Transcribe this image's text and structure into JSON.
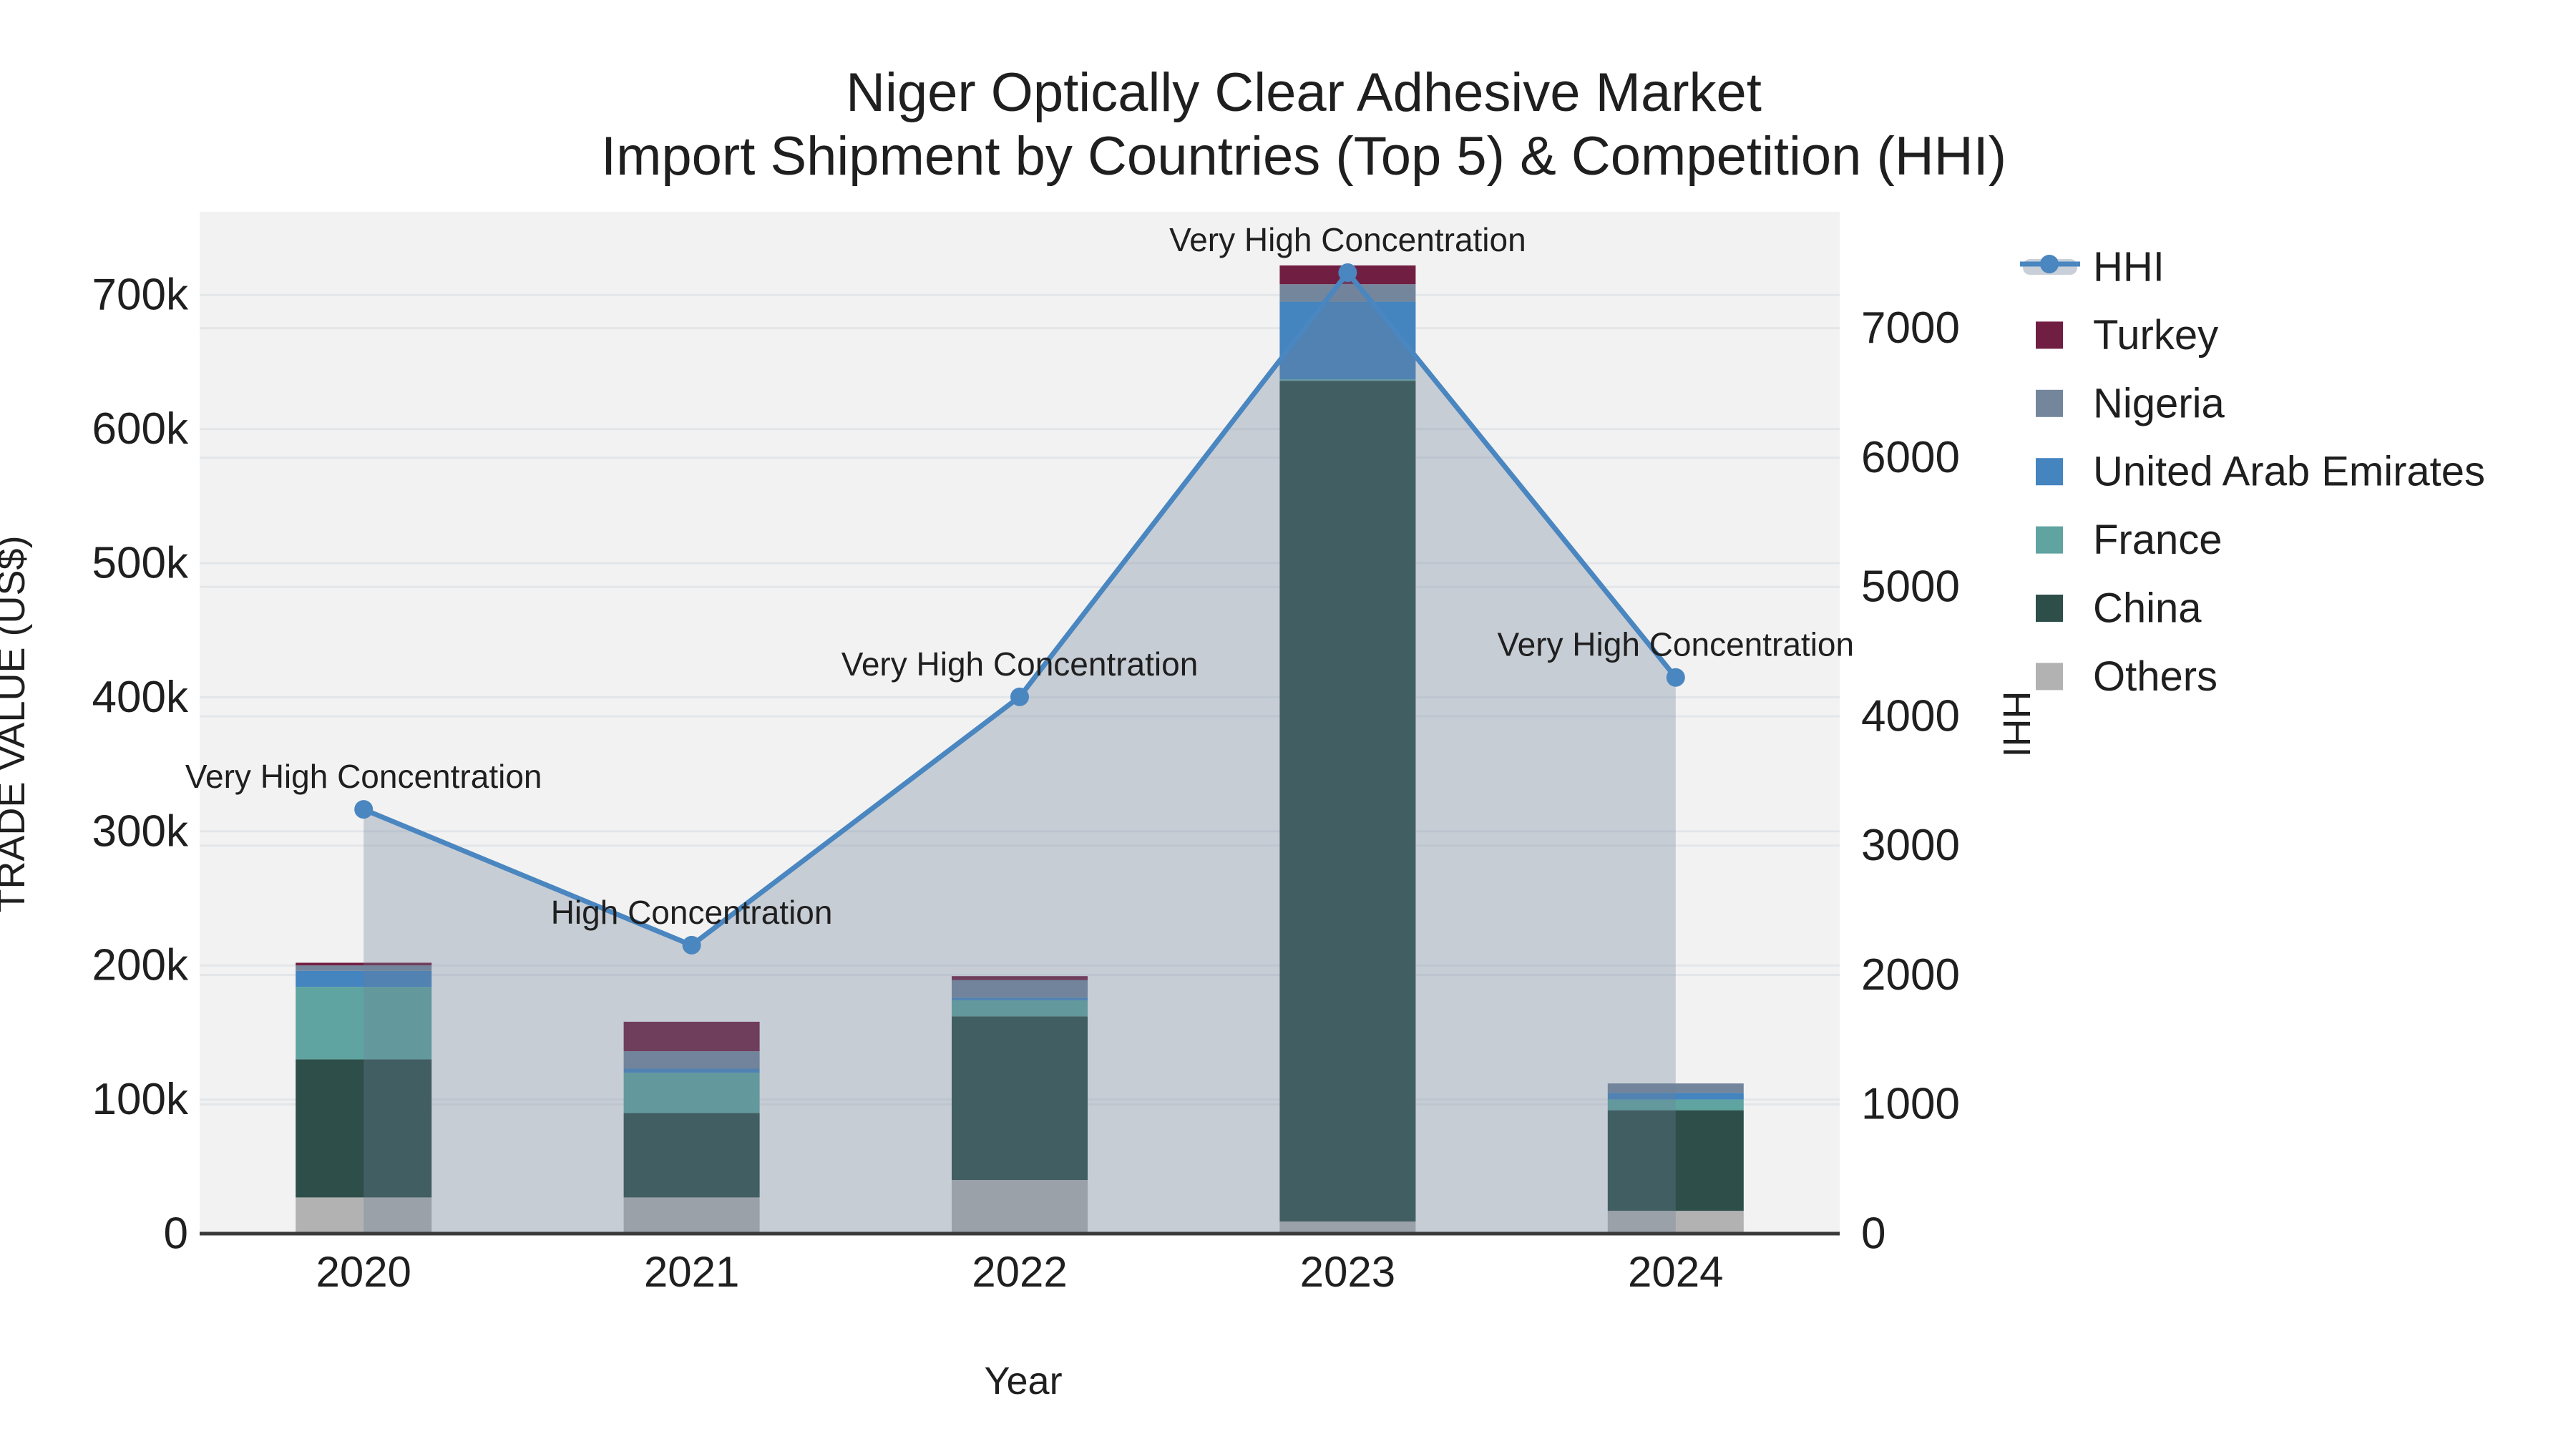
{
  "title": {
    "line1": "Niger Optically Clear Adhesive Market",
    "line2": "Import Shipment by Countries (Top 5) & Competition (HHI)"
  },
  "axes": {
    "x_title": "Year",
    "y_left_title": "TRADE VALUE (US$)",
    "y_right_title": "HHI",
    "y_left_tick_labels": [
      "0",
      "100k",
      "200k",
      "300k",
      "400k",
      "500k",
      "600k",
      "700k"
    ],
    "y_left_tick_values": [
      0,
      100,
      200,
      300,
      400,
      500,
      600,
      700
    ],
    "y_right_tick_labels": [
      "0",
      "1000",
      "2000",
      "3000",
      "4000",
      "5000",
      "6000",
      "7000"
    ],
    "y_right_tick_values": [
      0,
      1000,
      2000,
      3000,
      4000,
      5000,
      6000,
      7000
    ]
  },
  "legend": {
    "items": [
      {
        "label": "HHI",
        "type": "line",
        "color": "#4a86c0"
      },
      {
        "label": "Turkey",
        "type": "swatch",
        "color": "#701f42"
      },
      {
        "label": "Nigeria",
        "type": "swatch",
        "color": "#74869c"
      },
      {
        "label": "United Arab Emirates",
        "type": "swatch",
        "color": "#4484bf"
      },
      {
        "label": "France",
        "type": "swatch",
        "color": "#5fa4a0"
      },
      {
        "label": "China",
        "type": "swatch",
        "color": "#2d4e49"
      },
      {
        "label": "Others",
        "type": "swatch",
        "color": "#b2b2b2"
      }
    ]
  },
  "colors": {
    "plot_bg": "#f2f2f2",
    "gridline": "#e3e6e9",
    "axis_line": "#3a3a3a",
    "hhi_line": "#4a86c0",
    "hhi_area": "#6c8098",
    "hhi_area_opacity": "0.32",
    "text": "#1f1f1f"
  },
  "chart_data": {
    "type": "bar+line",
    "title": "Niger Optically Clear Adhesive Market — Import Shipment by Countries (Top 5) & Competition (HHI)",
    "unit": "US$ thousands",
    "categories": [
      "2020",
      "2021",
      "2022",
      "2023",
      "2024"
    ],
    "series": [
      {
        "name": "Turkey",
        "color": "#701f42",
        "values": [
          2,
          22,
          3,
          14,
          0
        ]
      },
      {
        "name": "Nigeria",
        "color": "#74869c",
        "values": [
          4,
          13,
          13,
          13,
          7
        ]
      },
      {
        "name": "United Arab Emirates",
        "color": "#4484bf",
        "values": [
          12,
          3,
          2,
          58,
          5
        ]
      },
      {
        "name": "France",
        "color": "#5fa4a0",
        "values": [
          54,
          30,
          12,
          1,
          8
        ]
      },
      {
        "name": "China",
        "color": "#2d4e49",
        "values": [
          103,
          63,
          122,
          627,
          75
        ]
      },
      {
        "name": "Others",
        "color": "#b2b2b2",
        "values": [
          27,
          27,
          40,
          9,
          17
        ]
      }
    ],
    "stack_order_bottom_to_top": [
      "Others",
      "China",
      "France",
      "United Arab Emirates",
      "Nigeria",
      "Turkey"
    ],
    "stacked_totals": [
      202,
      158,
      192,
      722,
      112
    ],
    "line_series": {
      "name": "HHI",
      "values": [
        3280,
        2230,
        4150,
        7430,
        4300
      ]
    },
    "annotations": [
      {
        "category": "2020",
        "text": "Very High Concentration"
      },
      {
        "category": "2021",
        "text": "High Concentration"
      },
      {
        "category": "2022",
        "text": "Very High Concentration"
      },
      {
        "category": "2023",
        "text": "Very High Concentration"
      },
      {
        "category": "2024",
        "text": "Very High Concentration"
      }
    ],
    "y_left_range": [
      0,
      762
    ],
    "y_right_range": [
      0,
      7900
    ],
    "grid": true,
    "legend_position": "right"
  }
}
